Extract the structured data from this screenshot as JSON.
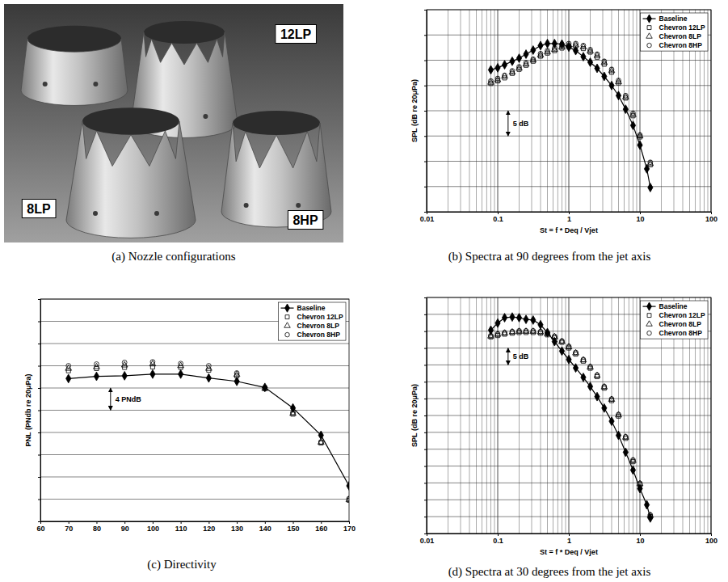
{
  "photo": {
    "labels": [
      "12LP",
      "8LP",
      "8HP"
    ],
    "caption": "(a) Nozzle configurations"
  },
  "chart_data": [
    {
      "type": "line",
      "title": "(b) Spectra at 90 degrees from the jet axis",
      "xlabel": "St = f * Deq / Vjet",
      "ylabel": "SPL (dB re 20μPa)",
      "log": "x",
      "grid": true,
      "legend": "upper right",
      "tick_labels": "x",
      "xlim": [
        0.01,
        100
      ],
      "xticks": [
        0.01,
        0.1,
        1,
        10,
        100
      ],
      "ylim": [
        0,
        40
      ],
      "yticks": [
        0,
        5,
        10,
        15,
        20,
        25,
        30,
        35,
        40
      ],
      "x": [
        0.08,
        0.1,
        0.125,
        0.16,
        0.2,
        0.25,
        0.315,
        0.4,
        0.5,
        0.63,
        0.8,
        1,
        1.25,
        1.6,
        2,
        2.5,
        3.15,
        4,
        5,
        6.3,
        8,
        10,
        12.5,
        14
      ],
      "series": [
        {
          "name": "Baseline",
          "color": "#000000",
          "marker": "diamond-filled",
          "line_style": "solid",
          "values": [
            28.1,
            28.5,
            29.1,
            29.8,
            30.4,
            31.2,
            32.0,
            32.9,
            33.3,
            33.3,
            33.2,
            32.6,
            31.9,
            30.7,
            29.6,
            28.4,
            26.8,
            25.0,
            23.0,
            20.3,
            17.1,
            13.2,
            8.5,
            4.8
          ]
        },
        {
          "name": "Chevron 12LP",
          "color": "#000000",
          "marker": "square-open",
          "line_style": "none",
          "values": [
            25.4,
            25.9,
            26.5,
            27.4,
            28.2,
            29.0,
            29.8,
            30.8,
            31.4,
            31.9,
            32.4,
            32.7,
            32.8,
            32.3,
            31.6,
            30.6,
            29.2,
            27.6,
            25.5,
            22.5,
            19.0,
            14.8,
            null,
            9.3
          ]
        },
        {
          "name": "Chevron 8LP",
          "color": "#000000",
          "marker": "triangle-open",
          "line_style": "none",
          "values": [
            25.6,
            26.1,
            26.8,
            27.6,
            28.4,
            29.2,
            30.0,
            31.0,
            31.6,
            32.1,
            32.6,
            33.0,
            33.0,
            32.6,
            31.8,
            30.9,
            29.5,
            27.9,
            25.7,
            22.7,
            19.2,
            15.0,
            null,
            9.5
          ]
        },
        {
          "name": "Chevron 8HP",
          "color": "#000000",
          "marker": "circle-open",
          "line_style": "none",
          "values": [
            25.9,
            26.4,
            27.0,
            27.9,
            28.7,
            29.5,
            30.2,
            31.3,
            31.9,
            32.4,
            32.9,
            33.3,
            33.3,
            32.9,
            32.1,
            31.2,
            29.8,
            28.2,
            26.0,
            23.0,
            19.5,
            15.2,
            null,
            9.8
          ]
        }
      ],
      "annotations": [
        {
          "text": "5 dB",
          "x": 0.14,
          "y1": 15,
          "y2": 20
        }
      ]
    },
    {
      "type": "line",
      "title": "(c) Directivity",
      "ylabel": "PNL (PNdb re 20μPa)",
      "grid": "y",
      "legend": "upper right",
      "tick_labels": "x",
      "xlim": [
        60,
        170
      ],
      "xticks": [
        60,
        70,
        80,
        90,
        100,
        110,
        120,
        130,
        140,
        150,
        160,
        170
      ],
      "ylim": [
        0,
        40
      ],
      "yticks": [
        0,
        4,
        8,
        12,
        16,
        20,
        24,
        28,
        32,
        36,
        40
      ],
      "x": [
        70,
        80,
        90,
        100,
        110,
        120,
        130,
        140,
        150,
        160,
        170
      ],
      "series": [
        {
          "name": "Baseline",
          "color": "#000000",
          "marker": "diamond-filled",
          "line_style": "solid",
          "values": [
            25.7,
            26.1,
            26.2,
            26.5,
            26.5,
            25.8,
            25.2,
            24.1,
            20.4,
            15.5,
            6.4
          ]
        },
        {
          "name": "Chevron 12LP",
          "color": "#000000",
          "marker": "square-open",
          "line_style": "none",
          "values": [
            27.1,
            27.5,
            27.7,
            27.8,
            27.7,
            27.2,
            26.2,
            23.9,
            19.3,
            14.1,
            3.8
          ]
        },
        {
          "name": "Chevron 8LP",
          "color": "#000000",
          "marker": "triangle-open",
          "line_style": "none",
          "values": [
            27.5,
            27.8,
            28.1,
            28.3,
            28.0,
            27.5,
            26.4,
            23.9,
            19.4,
            14.2,
            3.9
          ]
        },
        {
          "name": "Chevron 8HP",
          "color": "#000000",
          "marker": "circle-open",
          "line_style": "none",
          "values": [
            28.0,
            28.3,
            28.6,
            28.7,
            28.4,
            28.0,
            26.7,
            24.1,
            19.6,
            14.3,
            4.1
          ]
        }
      ],
      "annotations": [
        {
          "text": "4 PNdB",
          "x": 85,
          "y1": 20,
          "y2": 24
        }
      ]
    },
    {
      "type": "line",
      "title": "(d) Spectra at 30 degrees from the jet axis",
      "xlabel": "St = f * Deq / Vjet",
      "ylabel": "SPL (dB re 20μPa)",
      "log": "x",
      "grid": true,
      "legend": "upper right",
      "tick_labels": "x",
      "xlim": [
        0.01,
        100
      ],
      "xticks": [
        0.01,
        0.1,
        1,
        10,
        100
      ],
      "ylim": [
        0,
        70
      ],
      "yticks": [
        0,
        5,
        10,
        15,
        20,
        25,
        30,
        35,
        40,
        45,
        50,
        55,
        60,
        65,
        70
      ],
      "x": [
        0.08,
        0.1,
        0.125,
        0.16,
        0.2,
        0.25,
        0.315,
        0.4,
        0.5,
        0.63,
        0.8,
        1,
        1.25,
        1.6,
        2,
        2.5,
        3.15,
        4,
        5,
        6.3,
        8,
        10,
        12.5,
        14
      ],
      "series": [
        {
          "name": "Baseline",
          "color": "#000000",
          "marker": "diamond-filled",
          "line_style": "solid",
          "values": [
            60.3,
            62.4,
            64.0,
            64.2,
            64.0,
            63.5,
            63.3,
            61.9,
            59.6,
            56.9,
            54.1,
            51.6,
            49.1,
            46.3,
            43.6,
            40.6,
            37.2,
            33.3,
            29.1,
            24.1,
            18.8,
            13.3,
            8.5,
            4.6
          ]
        },
        {
          "name": "Chevron 12LP",
          "color": "#000000",
          "marker": "square-open",
          "line_style": "none",
          "values": [
            58.3,
            58.7,
            59.1,
            59.4,
            59.6,
            59.6,
            59.6,
            59.4,
            58.9,
            58.0,
            56.7,
            55.0,
            53.2,
            51.1,
            49.0,
            46.5,
            43.1,
            39.4,
            34.8,
            28.2,
            21.3,
            14.4,
            null,
            5.0
          ]
        },
        {
          "name": "Chevron 8LP",
          "color": "#000000",
          "marker": "triangle-open",
          "line_style": "none",
          "values": [
            58.5,
            59.0,
            59.4,
            59.7,
            59.9,
            59.9,
            59.9,
            59.7,
            59.2,
            58.3,
            56.9,
            55.3,
            53.5,
            51.4,
            49.3,
            46.8,
            43.4,
            39.7,
            35.1,
            28.5,
            21.6,
            14.7,
            null,
            5.3
          ]
        },
        {
          "name": "Chevron 8HP",
          "color": "#000000",
          "marker": "circle-open",
          "line_style": "none",
          "values": [
            58.7,
            59.2,
            59.6,
            59.9,
            60.1,
            60.1,
            60.1,
            59.9,
            59.4,
            58.5,
            57.1,
            55.5,
            53.7,
            51.6,
            49.5,
            47.0,
            43.6,
            39.9,
            35.3,
            28.7,
            21.8,
            14.9,
            null,
            5.5
          ]
        }
      ],
      "annotations": [
        {
          "text": "5 dB",
          "x": 0.14,
          "y1": 50,
          "y2": 55
        }
      ]
    }
  ]
}
